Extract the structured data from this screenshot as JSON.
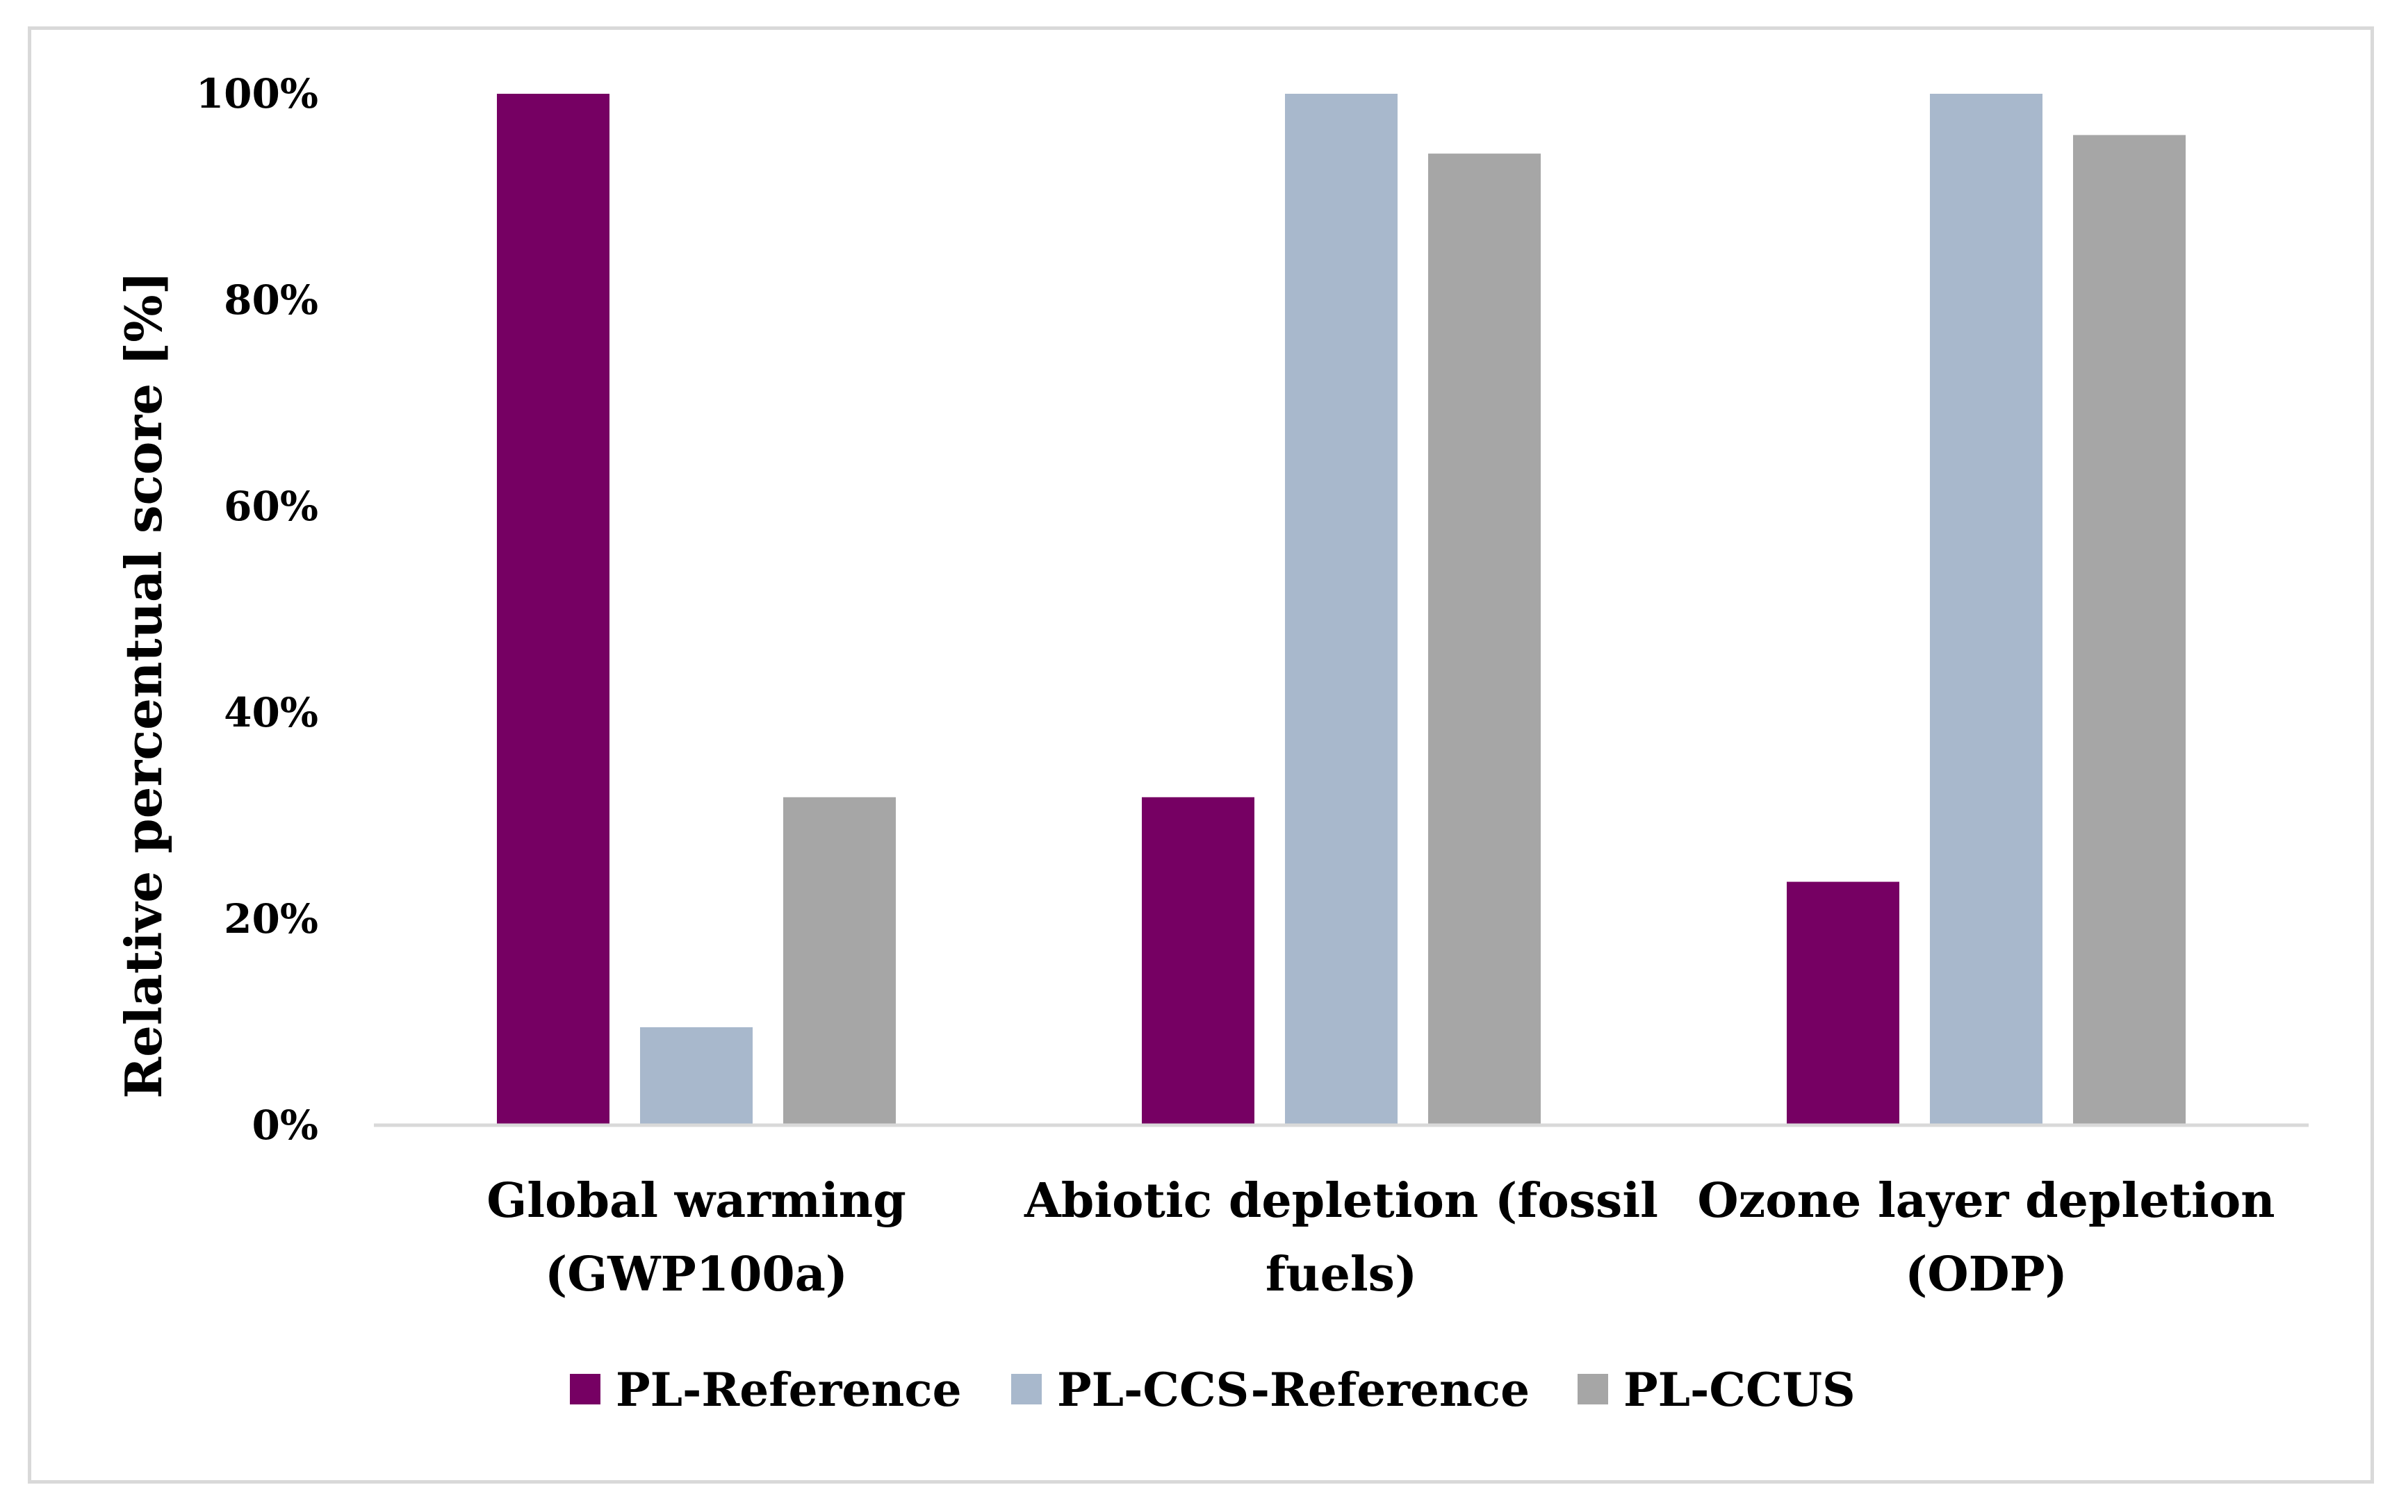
{
  "chart_data": {
    "type": "bar",
    "title": "",
    "xlabel": "",
    "ylabel": "Relative percentual score [%]",
    "ylim": [
      0,
      100
    ],
    "yticks": [
      "0%",
      "20%",
      "40%",
      "60%",
      "80%",
      "100%"
    ],
    "ytick_values": [
      0,
      20,
      40,
      60,
      80,
      100
    ],
    "grid": false,
    "legend_position": "bottom",
    "categories": [
      [
        "Global warming",
        "(GWP100a)"
      ],
      [
        "Abiotic depletion (fossil",
        "fuels)"
      ],
      [
        "Ozone layer depletion",
        "(ODP)"
      ]
    ],
    "series": [
      {
        "name": "PL-Reference",
        "color": "#760063",
        "values": [
          100,
          31.8,
          23.6
        ]
      },
      {
        "name": "PL-CCS-Reference",
        "color": "#a8b8cc",
        "values": [
          9.5,
          100,
          100
        ]
      },
      {
        "name": "PL-CCUS",
        "color": "#a6a6a6",
        "values": [
          31.8,
          94.2,
          96.0
        ]
      }
    ]
  }
}
